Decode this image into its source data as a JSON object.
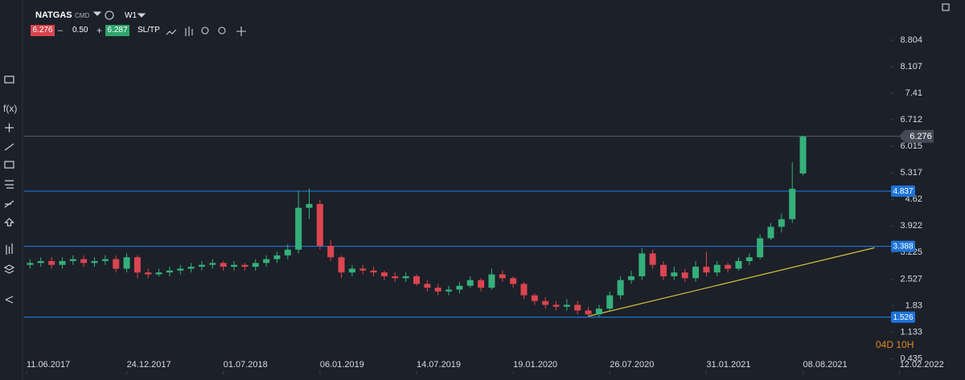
{
  "toolbar": {
    "symbol": "NATGAS",
    "symbol_type": "CMD",
    "timeframe": "W1",
    "sell_price": "6.276",
    "minus": "–",
    "quantity": "0.50",
    "plus": "+",
    "buy_price": "6.287",
    "sltp": "SL/TP"
  },
  "sidebar": {
    "function_icon": "f(x)"
  },
  "chart_data": {
    "type": "candlestick",
    "x": [
      1,
      4,
      7,
      10,
      13,
      16,
      19,
      22,
      25,
      28,
      31,
      34,
      37,
      40,
      43,
      46,
      49,
      52,
      55,
      58,
      61,
      64,
      67,
      70,
      73,
      76,
      79,
      82,
      85,
      88,
      91,
      94,
      97,
      100,
      103,
      106,
      109,
      112,
      115,
      118,
      121,
      124,
      127,
      130,
      133,
      136,
      139,
      142,
      145,
      148,
      151,
      154,
      157,
      160,
      163,
      166,
      169,
      172,
      175,
      178,
      181,
      184,
      187,
      190,
      193,
      196,
      199,
      202,
      205,
      208,
      211,
      214,
      217
    ],
    "open": [
      2.9,
      2.95,
      3.0,
      2.9,
      3.0,
      3.05,
      2.95,
      3.0,
      3.05,
      2.8,
      3.1,
      2.7,
      2.65,
      2.7,
      2.75,
      2.8,
      2.85,
      2.9,
      2.95,
      2.85,
      2.9,
      2.85,
      2.95,
      3.05,
      3.15,
      3.3,
      4.4,
      4.5,
      3.4,
      3.1,
      2.7,
      2.8,
      2.75,
      2.7,
      2.6,
      2.55,
      2.6,
      2.4,
      2.3,
      2.2,
      2.25,
      2.35,
      2.5,
      2.3,
      2.65,
      2.55,
      2.4,
      2.1,
      1.95,
      1.85,
      1.8,
      1.85,
      1.7,
      1.6,
      1.75,
      2.1,
      2.5,
      2.6,
      3.2,
      2.9,
      2.6,
      2.7,
      2.55,
      2.85,
      2.7,
      2.9,
      2.8,
      3.0,
      3.1,
      3.6,
      3.9,
      4.1,
      5.3
    ],
    "high": [
      3.05,
      3.1,
      3.1,
      3.1,
      3.15,
      3.15,
      3.1,
      3.15,
      3.15,
      3.2,
      3.15,
      2.8,
      2.8,
      2.85,
      2.9,
      2.95,
      3.0,
      3.05,
      3.0,
      3.0,
      2.95,
      3.05,
      3.15,
      3.25,
      3.45,
      4.85,
      4.9,
      4.6,
      3.55,
      3.15,
      2.9,
      2.9,
      2.85,
      2.75,
      2.7,
      2.7,
      2.65,
      2.5,
      2.4,
      2.35,
      2.45,
      2.6,
      2.55,
      2.8,
      2.75,
      2.6,
      2.45,
      2.15,
      2.05,
      1.95,
      2.0,
      1.95,
      1.8,
      1.85,
      2.2,
      2.6,
      2.75,
      3.35,
      3.3,
      3.0,
      2.85,
      2.8,
      3.0,
      3.25,
      3.0,
      2.95,
      3.1,
      3.2,
      3.7,
      4.0,
      4.25,
      5.6,
      6.3
    ],
    "low": [
      2.8,
      2.85,
      2.8,
      2.8,
      2.9,
      2.85,
      2.85,
      2.9,
      2.7,
      2.7,
      2.55,
      2.55,
      2.6,
      2.6,
      2.65,
      2.7,
      2.75,
      2.8,
      2.75,
      2.75,
      2.75,
      2.75,
      2.85,
      2.95,
      3.05,
      3.2,
      4.1,
      3.3,
      3.0,
      2.55,
      2.6,
      2.65,
      2.6,
      2.5,
      2.45,
      2.45,
      2.35,
      2.2,
      2.1,
      2.1,
      2.15,
      2.3,
      2.2,
      2.25,
      2.45,
      2.3,
      2.0,
      1.85,
      1.75,
      1.7,
      1.7,
      1.6,
      1.55,
      1.53,
      1.7,
      2.0,
      2.4,
      2.5,
      2.8,
      2.5,
      2.5,
      2.45,
      2.45,
      2.6,
      2.6,
      2.7,
      2.75,
      2.9,
      3.05,
      3.55,
      3.75,
      4.0,
      5.25
    ],
    "close": [
      2.95,
      3.0,
      2.9,
      3.0,
      3.05,
      2.95,
      3.0,
      3.05,
      2.8,
      3.1,
      2.7,
      2.65,
      2.7,
      2.75,
      2.8,
      2.85,
      2.9,
      2.95,
      2.85,
      2.9,
      2.85,
      2.95,
      3.05,
      3.15,
      3.3,
      4.4,
      4.5,
      3.4,
      3.1,
      2.7,
      2.8,
      2.75,
      2.7,
      2.6,
      2.55,
      2.6,
      2.4,
      2.3,
      2.2,
      2.25,
      2.35,
      2.5,
      2.3,
      2.65,
      2.55,
      2.4,
      2.1,
      1.95,
      1.85,
      1.8,
      1.85,
      1.7,
      1.6,
      1.75,
      2.1,
      2.5,
      2.6,
      3.2,
      2.9,
      2.6,
      2.7,
      2.55,
      2.85,
      2.7,
      2.9,
      2.8,
      3.0,
      3.1,
      3.6,
      3.9,
      4.1,
      4.9,
      6.276
    ],
    "up_color": "#35b07a",
    "down_color": "#db4550",
    "xlim": [
      -0.67,
      239.8
    ],
    "xticks": [
      {
        "value": 0,
        "label": "11.06.2017"
      },
      {
        "value": 28,
        "label": "24.12.2017"
      },
      {
        "value": 55,
        "label": "01.07.2018"
      },
      {
        "value": 82,
        "label": "06.01.2019"
      },
      {
        "value": 109,
        "label": "14.07.2019"
      },
      {
        "value": 136,
        "label": "19.01.2020"
      },
      {
        "value": 163,
        "label": "26.07.2020"
      },
      {
        "value": 190,
        "label": "31.01.2021"
      },
      {
        "value": 217,
        "label": "08.08.2021"
      },
      {
        "value": 244,
        "label": "12.02.2022"
      }
    ],
    "ylim": [
      0.107,
      9.648
    ],
    "yticks": [
      0.435,
      1.133,
      1.83,
      2.527,
      3.225,
      3.922,
      4.62,
      5.317,
      6.015,
      6.712,
      7.41,
      8.107,
      8.804
    ],
    "levels": [
      4.837,
      3.388,
      1.526
    ],
    "level_color": "#1f74d6",
    "last_price": 6.276,
    "trendline": {
      "x": [
        157,
        237
      ],
      "y": [
        1.55,
        3.35
      ],
      "color": "#d4c63c"
    },
    "countdown": "04D 10H"
  }
}
